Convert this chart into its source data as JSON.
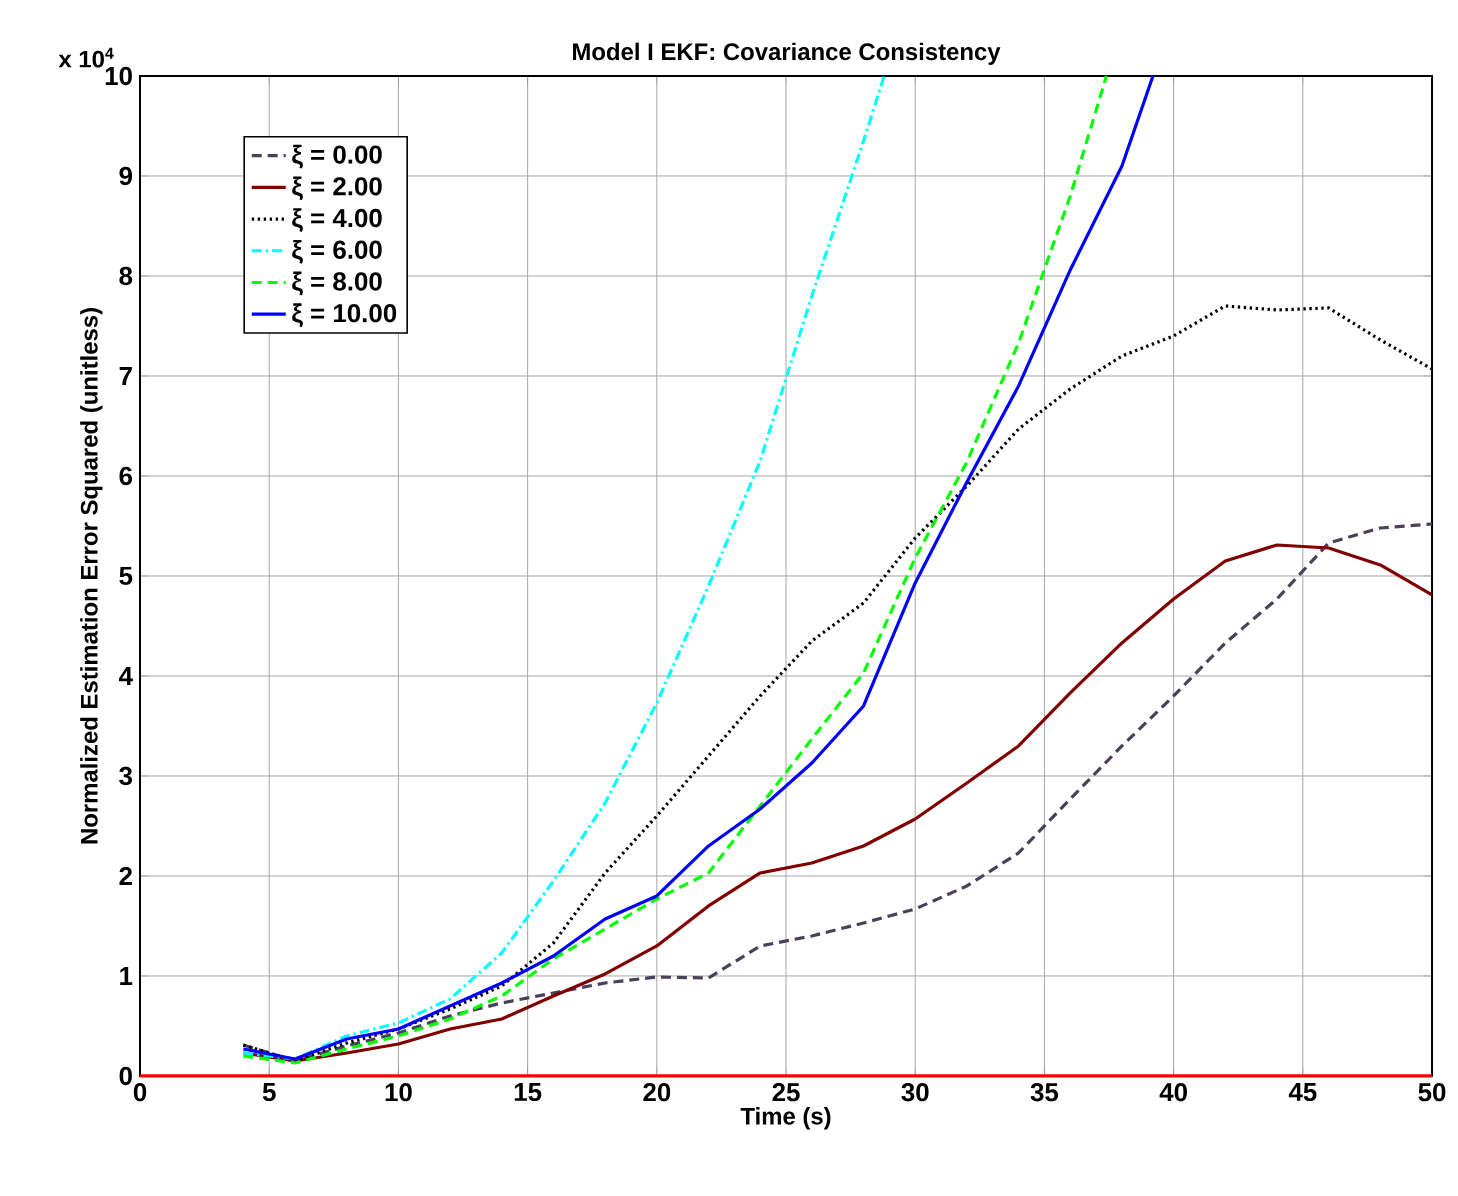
{
  "chart_data": {
    "type": "line",
    "title": "Model I EKF: Covariance Consistency",
    "xlabel": "Time (s)",
    "ylabel": "Normalized Estimation Error Squared (unitless)",
    "annotations": [
      "x 10$^{4}$"
    ],
    "xlim": [
      0,
      50
    ],
    "ylim": [
      0,
      10
    ],
    "xticks": [
      0,
      5,
      10,
      15,
      20,
      25,
      30,
      35,
      40,
      45,
      50
    ],
    "yticks": [
      0,
      1,
      2,
      3,
      4,
      5,
      6,
      7,
      8,
      9,
      10
    ],
    "grid": true,
    "legend": "top left",
    "marker": "none",
    "series": [
      {
        "color": "#ff0000",
        "line_style": "solid",
        "x": [
          0,
          50
        ],
        "values": [
          0,
          0
        ]
      },
      {
        "name": "ξ = 0.00",
        "color": "#4b3f5a",
        "line_style": "dashed",
        "x": [
          4,
          6,
          8,
          10,
          12,
          14,
          16,
          18,
          20,
          22,
          24,
          26,
          28,
          30,
          32,
          34,
          36,
          38,
          40,
          42,
          44,
          46,
          48,
          50
        ],
        "values": [
          0.31,
          0.15,
          0.3,
          0.43,
          0.6,
          0.73,
          0.83,
          0.93,
          0.99,
          0.98,
          1.3,
          1.4,
          1.53,
          1.67,
          1.9,
          2.23,
          2.77,
          3.3,
          3.8,
          4.33,
          4.77,
          5.33,
          5.48,
          5.52
        ]
      },
      {
        "name": "ξ = 2.00",
        "color": "#800000",
        "line_style": "solid",
        "x": [
          4,
          6,
          8,
          10,
          12,
          14,
          16,
          18,
          20,
          22,
          24,
          26,
          28,
          30,
          32,
          34,
          36,
          38,
          40,
          42,
          44,
          46,
          48,
          50
        ],
        "values": [
          0.23,
          0.15,
          0.23,
          0.32,
          0.47,
          0.57,
          0.8,
          1.02,
          1.3,
          1.7,
          2.03,
          2.13,
          2.3,
          2.57,
          2.93,
          3.3,
          3.83,
          4.33,
          4.77,
          5.15,
          5.31,
          5.28,
          5.11,
          4.81
        ]
      },
      {
        "name": "ξ = 4.00",
        "color": "#000000",
        "line_style": "dotted",
        "x": [
          4,
          6,
          8,
          10,
          12,
          14,
          16,
          18,
          20,
          22,
          24,
          26,
          28,
          30,
          32,
          34,
          36,
          38,
          40,
          42,
          44,
          46,
          48,
          50
        ],
        "values": [
          0.31,
          0.15,
          0.33,
          0.47,
          0.67,
          0.9,
          1.33,
          2.03,
          2.6,
          3.2,
          3.8,
          4.35,
          4.73,
          5.38,
          5.9,
          6.47,
          6.87,
          7.2,
          7.4,
          7.7,
          7.66,
          7.68,
          7.36,
          7.07
        ]
      },
      {
        "name": "ξ = 6.00",
        "color": "#00ffff",
        "line_style": "dashdot",
        "x": [
          4,
          6,
          8,
          10,
          12,
          14,
          16,
          18,
          20,
          22,
          24,
          26,
          28,
          28.8
        ],
        "values": [
          0.23,
          0.17,
          0.4,
          0.53,
          0.77,
          1.23,
          1.95,
          2.73,
          3.73,
          4.9,
          6.15,
          7.8,
          9.35,
          10
        ]
      },
      {
        "name": "ξ = 8.00",
        "color": "#00ff00",
        "line_style": "dashed",
        "x": [
          4,
          6,
          8,
          10,
          12,
          14,
          16,
          18,
          20,
          22,
          24,
          26,
          28,
          30,
          32,
          34,
          36,
          37.4
        ],
        "values": [
          0.2,
          0.13,
          0.27,
          0.4,
          0.57,
          0.8,
          1.17,
          1.47,
          1.77,
          2.03,
          2.7,
          3.37,
          4.03,
          5.18,
          6.14,
          7.33,
          8.8,
          10
        ]
      },
      {
        "name": "ξ = 10.00",
        "color": "#0000ff",
        "line_style": "solid",
        "x": [
          4,
          6,
          8,
          10,
          12,
          14,
          16,
          18,
          20,
          22,
          24,
          26,
          28,
          30,
          32,
          34,
          36,
          38,
          39.2
        ],
        "values": [
          0.27,
          0.17,
          0.37,
          0.47,
          0.7,
          0.93,
          1.2,
          1.57,
          1.8,
          2.3,
          2.67,
          3.13,
          3.7,
          4.93,
          5.94,
          6.9,
          8.06,
          9.1,
          10
        ]
      }
    ]
  }
}
